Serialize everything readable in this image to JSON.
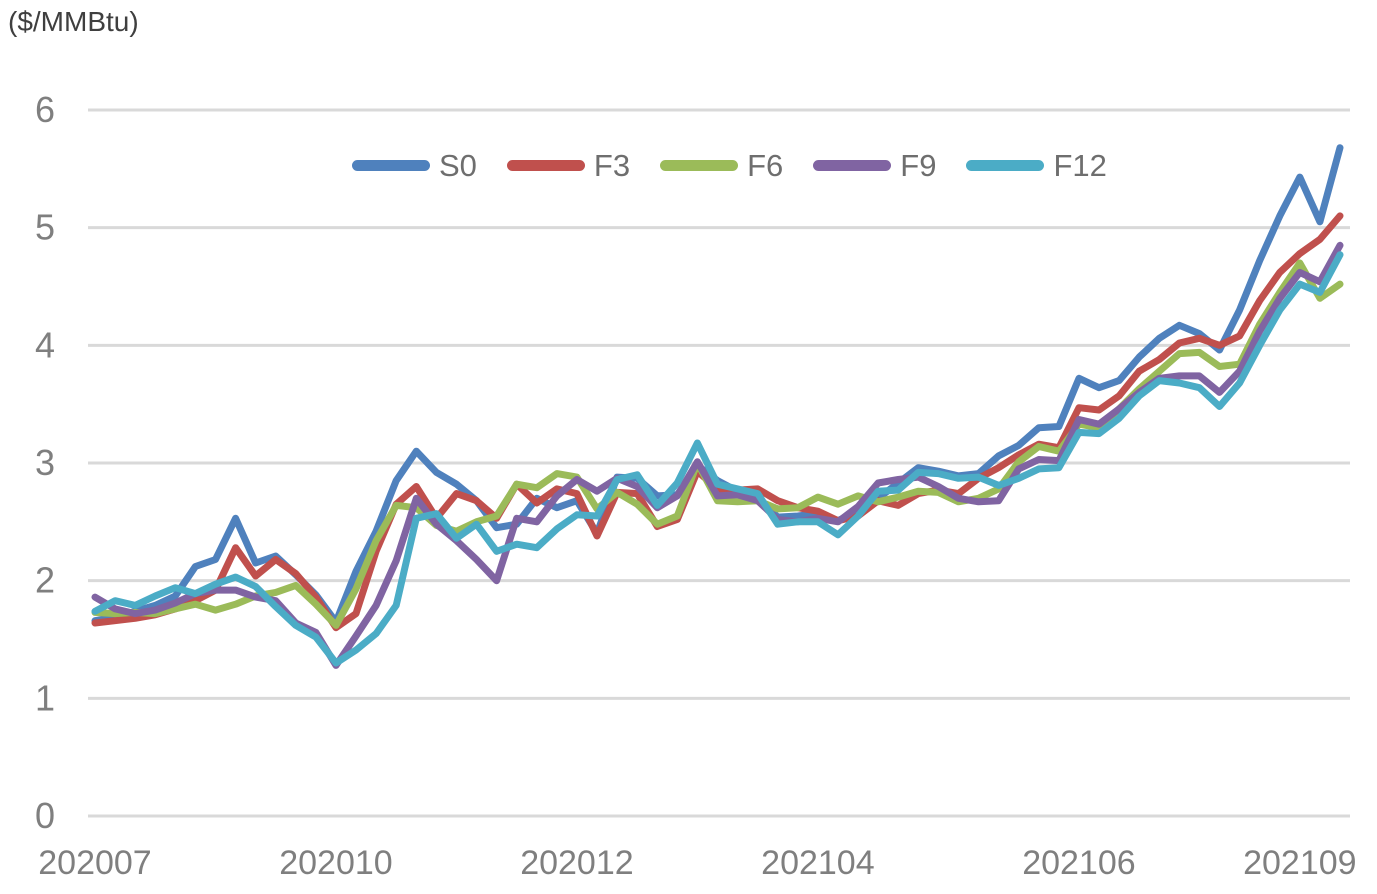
{
  "unit_label": "($/MMBtu)",
  "style": {
    "grid_color": "#d9d9d9",
    "tick_label_color": "#7f7f7f",
    "unit_label_color": "#3f3f3f",
    "legend_label_color": "#6e6e6e",
    "background": "#ffffff"
  },
  "chart_data": {
    "type": "line",
    "title": "",
    "ylabel": "($/MMBtu)",
    "ylim": [
      0,
      6
    ],
    "ytick_values": [
      0,
      1,
      2,
      3,
      4,
      5,
      6
    ],
    "grid": "horizontal gridlines on",
    "legend_position": "top-center-horizontal",
    "x_axis_note": "weekly observations, category axis labeled YYYYMM",
    "n_points": 63,
    "x_tick_labels": [
      "202007",
      "202010",
      "202012",
      "202104",
      "202106",
      "202109"
    ],
    "x_tick_indices": [
      0,
      12,
      24,
      36,
      49,
      60
    ],
    "series": [
      {
        "name": "S0",
        "color": "#4F81BD",
        "values": [
          1.66,
          1.69,
          1.74,
          1.79,
          1.87,
          2.12,
          2.18,
          2.53,
          2.15,
          2.21,
          2.05,
          1.88,
          1.65,
          2.08,
          2.42,
          2.85,
          3.1,
          2.92,
          2.82,
          2.68,
          2.45,
          2.48,
          2.7,
          2.62,
          2.68,
          2.4,
          2.88,
          2.87,
          2.72,
          2.73,
          2.98,
          2.85,
          2.76,
          2.7,
          2.54,
          2.55,
          2.57,
          2.51,
          2.59,
          2.7,
          2.83,
          2.96,
          2.93,
          2.89,
          2.91,
          3.06,
          3.15,
          3.3,
          3.31,
          3.72,
          3.64,
          3.7,
          3.9,
          4.06,
          4.17,
          4.1,
          3.96,
          4.3,
          4.72,
          5.1,
          5.43,
          5.05,
          5.68
        ]
      },
      {
        "name": "F3",
        "color": "#C0504D",
        "values": [
          1.64,
          1.66,
          1.68,
          1.71,
          1.76,
          1.83,
          1.92,
          2.28,
          2.04,
          2.18,
          2.06,
          1.86,
          1.6,
          1.72,
          2.25,
          2.65,
          2.8,
          2.53,
          2.74,
          2.68,
          2.53,
          2.82,
          2.66,
          2.78,
          2.74,
          2.38,
          2.75,
          2.74,
          2.46,
          2.52,
          2.93,
          2.78,
          2.77,
          2.78,
          2.68,
          2.62,
          2.59,
          2.51,
          2.55,
          2.68,
          2.64,
          2.74,
          2.77,
          2.74,
          2.87,
          2.96,
          3.07,
          3.16,
          3.13,
          3.47,
          3.45,
          3.57,
          3.78,
          3.88,
          4.02,
          4.06,
          4.0,
          4.08,
          4.38,
          4.62,
          4.78,
          4.9,
          5.1
        ]
      },
      {
        "name": "F6",
        "color": "#9BBB59",
        "values": [
          1.73,
          1.72,
          1.73,
          1.72,
          1.76,
          1.8,
          1.75,
          1.8,
          1.87,
          1.9,
          1.96,
          1.8,
          1.62,
          1.93,
          2.34,
          2.64,
          2.62,
          2.47,
          2.42,
          2.5,
          2.55,
          2.82,
          2.79,
          2.91,
          2.88,
          2.61,
          2.75,
          2.65,
          2.48,
          2.55,
          3.0,
          2.68,
          2.67,
          2.68,
          2.61,
          2.62,
          2.71,
          2.65,
          2.72,
          2.67,
          2.71,
          2.76,
          2.75,
          2.67,
          2.7,
          2.78,
          3.01,
          3.14,
          3.1,
          3.33,
          3.3,
          3.46,
          3.63,
          3.78,
          3.93,
          3.94,
          3.82,
          3.84,
          4.18,
          4.45,
          4.7,
          4.4,
          4.52
        ]
      },
      {
        "name": "F9",
        "color": "#8064A2",
        "values": [
          1.86,
          1.76,
          1.72,
          1.75,
          1.81,
          1.89,
          1.92,
          1.92,
          1.86,
          1.83,
          1.64,
          1.56,
          1.28,
          1.53,
          1.79,
          2.17,
          2.7,
          2.48,
          2.34,
          2.18,
          2.0,
          2.53,
          2.5,
          2.72,
          2.86,
          2.76,
          2.87,
          2.8,
          2.62,
          2.72,
          3.01,
          2.72,
          2.73,
          2.68,
          2.52,
          2.5,
          2.53,
          2.5,
          2.63,
          2.83,
          2.86,
          2.88,
          2.8,
          2.7,
          2.67,
          2.68,
          2.95,
          3.03,
          3.02,
          3.37,
          3.33,
          3.46,
          3.6,
          3.72,
          3.74,
          3.74,
          3.6,
          3.78,
          4.12,
          4.4,
          4.62,
          4.54,
          4.85
        ]
      },
      {
        "name": "F12",
        "color": "#4BACC6",
        "values": [
          1.74,
          1.83,
          1.79,
          1.87,
          1.94,
          1.89,
          1.97,
          2.03,
          1.95,
          1.78,
          1.62,
          1.52,
          1.3,
          1.41,
          1.55,
          1.79,
          2.53,
          2.57,
          2.36,
          2.48,
          2.25,
          2.31,
          2.28,
          2.44,
          2.56,
          2.55,
          2.86,
          2.9,
          2.64,
          2.83,
          3.17,
          2.82,
          2.78,
          2.74,
          2.48,
          2.5,
          2.5,
          2.39,
          2.55,
          2.76,
          2.77,
          2.92,
          2.91,
          2.87,
          2.88,
          2.81,
          2.87,
          2.95,
          2.96,
          3.26,
          3.25,
          3.38,
          3.57,
          3.7,
          3.68,
          3.64,
          3.48,
          3.68,
          4.0,
          4.3,
          4.52,
          4.45,
          4.77
        ]
      }
    ]
  }
}
